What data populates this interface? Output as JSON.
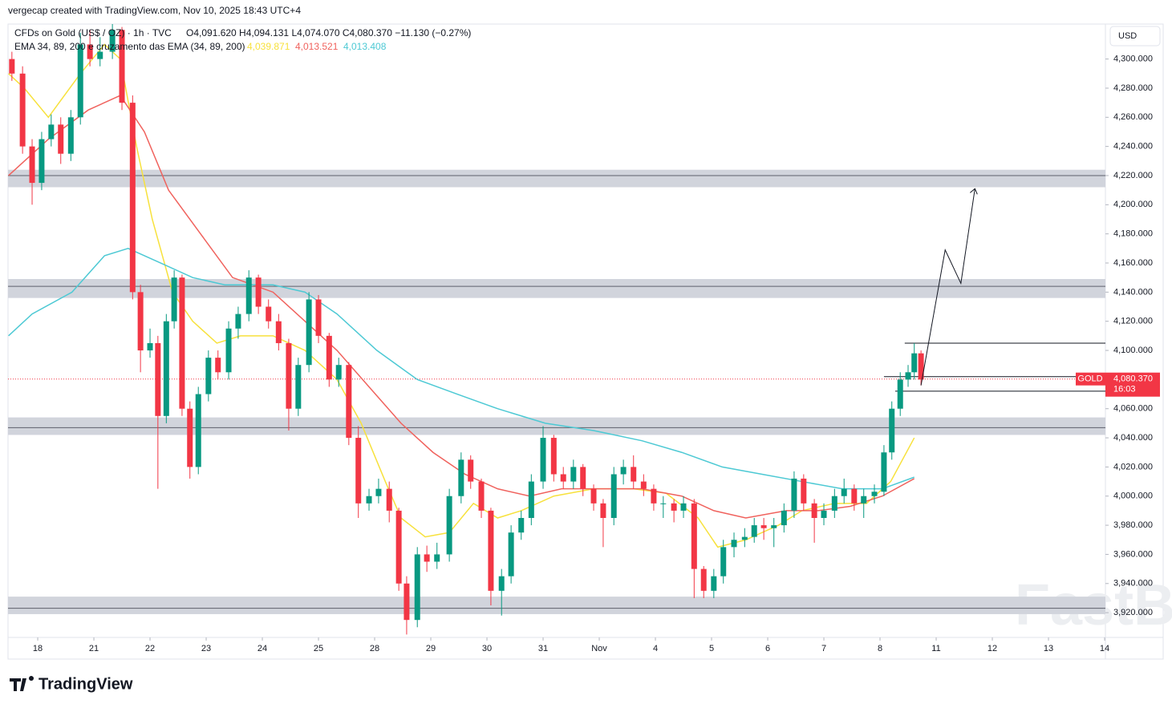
{
  "header": "vergecap created with TradingView.com, Nov 10, 2025 18:43 UTC+4",
  "brand": "TradingView",
  "watermark": "FastBull",
  "chart_data": {
    "type": "candlestick",
    "title": "CFDs on Gold (US$ / OZ) · 1h · TVC",
    "ohlc_text": "O4,091.620  H4,094.131  L4,074.070  C4,080.370  −11.130 (−0.27%)",
    "indicator": "EMA 34, 89, 200 e cruzamento das EMA (34, 89, 200)",
    "currency": "USD",
    "x": [
      -0.46,
      -0.27,
      -0.1,
      0.07,
      0.24,
      0.41,
      0.59,
      0.76,
      0.93,
      1.11,
      1.33,
      1.5,
      1.69,
      1.83,
      2.0,
      2.14,
      2.29,
      2.43,
      2.57,
      2.71,
      2.86,
      3.04,
      3.21,
      3.4,
      3.57,
      3.76,
      3.93,
      4.11,
      4.29,
      4.47,
      4.64,
      4.83,
      5.0,
      5.19,
      5.36,
      5.54,
      5.71,
      5.9,
      6.07,
      6.26,
      6.43,
      6.57,
      6.76,
      6.93,
      7.11,
      7.33,
      7.54,
      7.71,
      7.9,
      8.07,
      8.26,
      8.43,
      8.61,
      8.79,
      9.0,
      9.19,
      9.36,
      9.54,
      9.71,
      9.9,
      10.07,
      10.26,
      10.43,
      10.61,
      10.79,
      10.97,
      11.14,
      11.33,
      11.5,
      11.69,
      11.86,
      12.04,
      12.21,
      12.4,
      12.59,
      12.76,
      12.93,
      13.11,
      13.29,
      13.47,
      13.64,
      13.83,
      14.0,
      14.19,
      14.36,
      14.54,
      14.71,
      14.9,
      15.07,
      15.21,
      15.36,
      15.5,
      15.61,
      15.73
    ],
    "ohlc": [
      [
        4300,
        4305,
        4285,
        4290
      ],
      [
        4290,
        4295,
        4235,
        4240
      ],
      [
        4240,
        4245,
        4200,
        4215
      ],
      [
        4215,
        4250,
        4210,
        4245
      ],
      [
        4245,
        4262,
        4240,
        4255
      ],
      [
        4255,
        4260,
        4228,
        4235
      ],
      [
        4235,
        4265,
        4230,
        4260
      ],
      [
        4260,
        4318,
        4255,
        4310
      ],
      [
        4310,
        4320,
        4295,
        4300
      ],
      [
        4300,
        4315,
        4295,
        4305
      ],
      [
        4305,
        4324,
        4300,
        4320
      ],
      [
        4320,
        4322,
        4265,
        4270
      ],
      [
        4270,
        4275,
        4135,
        4140
      ],
      [
        4140,
        4145,
        4085,
        4100
      ],
      [
        4100,
        4115,
        4095,
        4105
      ],
      [
        4105,
        4110,
        4005,
        4055
      ],
      [
        4055,
        4125,
        4050,
        4120
      ],
      [
        4120,
        4155,
        4115,
        4150
      ],
      [
        4150,
        4152,
        4055,
        4060
      ],
      [
        4060,
        4065,
        4012,
        4020
      ],
      [
        4020,
        4075,
        4015,
        4070
      ],
      [
        4070,
        4100,
        4065,
        4095
      ],
      [
        4095,
        4100,
        4080,
        4085
      ],
      [
        4085,
        4120,
        4080,
        4115
      ],
      [
        4115,
        4130,
        4108,
        4125
      ],
      [
        4125,
        4155,
        4120,
        4150
      ],
      [
        4150,
        4152,
        4125,
        4130
      ],
      [
        4130,
        4135,
        4115,
        4120
      ],
      [
        4120,
        4125,
        4100,
        4105
      ],
      [
        4105,
        4108,
        4045,
        4060
      ],
      [
        4060,
        4095,
        4055,
        4090
      ],
      [
        4090,
        4140,
        4085,
        4135
      ],
      [
        4135,
        4138,
        4105,
        4110
      ],
      [
        4110,
        4112,
        4075,
        4080
      ],
      [
        4080,
        4095,
        4075,
        4090
      ],
      [
        4090,
        4092,
        4035,
        4040
      ],
      [
        4040,
        4048,
        3985,
        3995
      ],
      [
        3995,
        4005,
        3990,
        4000
      ],
      [
        4000,
        4012,
        3995,
        4005
      ],
      [
        4005,
        4010,
        3982,
        3990
      ],
      [
        3990,
        3992,
        3935,
        3940
      ],
      [
        3940,
        3945,
        3905,
        3915
      ],
      [
        3915,
        3965,
        3910,
        3960
      ],
      [
        3960,
        3966,
        3948,
        3955
      ],
      [
        3955,
        3968,
        3950,
        3960
      ],
      [
        3960,
        4005,
        3955,
        4000
      ],
      [
        4000,
        4030,
        3995,
        4025
      ],
      [
        4025,
        4028,
        4005,
        4010
      ],
      [
        4010,
        4012,
        3985,
        3990
      ],
      [
        3990,
        3992,
        3925,
        3935
      ],
      [
        3935,
        3950,
        3918,
        3945
      ],
      [
        3945,
        3980,
        3940,
        3975
      ],
      [
        3975,
        3990,
        3970,
        3985
      ],
      [
        3985,
        4015,
        3980,
        4010
      ],
      [
        4010,
        4048,
        4005,
        4040
      ],
      [
        4040,
        4042,
        4010,
        4015
      ],
      [
        4015,
        4020,
        4005,
        4010
      ],
      [
        4010,
        4025,
        4005,
        4020
      ],
      [
        4020,
        4022,
        4000,
        4005
      ],
      [
        4005,
        4008,
        3990,
        3995
      ],
      [
        3995,
        3998,
        3965,
        3985
      ],
      [
        3985,
        4020,
        3980,
        4015
      ],
      [
        4015,
        4025,
        4008,
        4020
      ],
      [
        4020,
        4028,
        4005,
        4010
      ],
      [
        4010,
        4015,
        4000,
        4005
      ],
      [
        4005,
        4008,
        3990,
        3995
      ],
      [
        3995,
        4000,
        3985,
        3995
      ],
      [
        3995,
        3998,
        3982,
        3990
      ],
      [
        3990,
        4000,
        3985,
        3995
      ],
      [
        3995,
        3998,
        3930,
        3950
      ],
      [
        3950,
        3952,
        3930,
        3935
      ],
      [
        3935,
        3950,
        3930,
        3945
      ],
      [
        3945,
        3970,
        3940,
        3965
      ],
      [
        3965,
        3975,
        3958,
        3970
      ],
      [
        3970,
        3978,
        3965,
        3972
      ],
      [
        3972,
        3985,
        3968,
        3980
      ],
      [
        3980,
        3985,
        3970,
        3978
      ],
      [
        3978,
        3985,
        3965,
        3980
      ],
      [
        3980,
        3995,
        3975,
        3990
      ],
      [
        3990,
        4017,
        3985,
        4012
      ],
      [
        4012,
        4015,
        3990,
        3995
      ],
      [
        3995,
        3998,
        3968,
        3985
      ],
      [
        3985,
        3995,
        3980,
        3990
      ],
      [
        3990,
        4005,
        3985,
        4000
      ],
      [
        4000,
        4012,
        3995,
        4005
      ],
      [
        4005,
        4008,
        3990,
        3995
      ],
      [
        3995,
        4005,
        3985,
        4000
      ],
      [
        4000,
        4008,
        3995,
        4003
      ],
      [
        4003,
        4035,
        4000,
        4030
      ],
      [
        4030,
        4065,
        4025,
        4060
      ],
      [
        4060,
        4085,
        4055,
        4080
      ],
      [
        4080,
        4090,
        4075,
        4085
      ],
      [
        4085,
        4105,
        4080,
        4098
      ],
      [
        4098,
        4100,
        4076,
        4080
      ]
    ],
    "up_color": "#089981",
    "down_color": "#f23645",
    "series": [
      {
        "name": "EMA 34",
        "color": "#f7e13c",
        "value_label": "4,039.871",
        "x": [
          -0.52,
          -0.24,
          0.19,
          0.76,
          1.19,
          1.47,
          1.76,
          2.04,
          2.4,
          2.76,
          3.19,
          3.61,
          4.19,
          4.76,
          5.33,
          5.76,
          6.19,
          6.47,
          6.9,
          7.33,
          7.76,
          8.19,
          8.61,
          9.19,
          9.9,
          10.61,
          11.19,
          11.76,
          12.11,
          12.61,
          13.19,
          13.61,
          14.19,
          14.76,
          15.19,
          15.61
        ],
        "values": [
          4290,
          4280,
          4260,
          4290,
          4310,
          4300,
          4240,
          4190,
          4140,
          4120,
          4105,
          4110,
          4110,
          4100,
          4080,
          4050,
          4010,
          3985,
          3972,
          3975,
          3995,
          3985,
          3990,
          4000,
          4005,
          4005,
          4002,
          3985,
          3965,
          3970,
          3980,
          3990,
          3995,
          3995,
          4010,
          4040
        ]
      },
      {
        "name": "EMA 89",
        "color": "#f0625d",
        "value_label": "4,013.521",
        "x": [
          -0.52,
          0.19,
          0.9,
          1.47,
          1.9,
          2.33,
          2.9,
          3.47,
          4.19,
          4.76,
          5.33,
          5.9,
          6.47,
          7.04,
          7.61,
          8.19,
          8.76,
          9.33,
          10.04,
          10.76,
          11.47,
          12.04,
          12.61,
          13.33,
          13.9,
          14.47,
          15.04,
          15.61
        ],
        "values": [
          4220,
          4245,
          4265,
          4275,
          4250,
          4210,
          4180,
          4150,
          4140,
          4120,
          4100,
          4075,
          4050,
          4030,
          4015,
          4005,
          4000,
          4005,
          4005,
          4005,
          4000,
          3990,
          3985,
          3990,
          3990,
          3993,
          4000,
          4012
        ]
      },
      {
        "name": "EMA 200",
        "color": "#4dc9d4",
        "value_label": "4,013.408",
        "x": [
          -0.52,
          -0.1,
          0.61,
          1.19,
          1.61,
          2.19,
          2.76,
          3.33,
          4.19,
          4.76,
          5.33,
          6.04,
          6.76,
          7.47,
          8.19,
          9.04,
          9.9,
          10.76,
          11.47,
          12.19,
          12.9,
          13.61,
          14.33,
          15.04,
          15.61
        ],
        "values": [
          4110,
          4125,
          4140,
          4165,
          4170,
          4160,
          4150,
          4145,
          4145,
          4140,
          4125,
          4100,
          4080,
          4070,
          4060,
          4050,
          4045,
          4038,
          4030,
          4020,
          4015,
          4010,
          4005,
          4005,
          4013
        ]
      }
    ],
    "zones": [
      {
        "low": 4212,
        "high": 4224,
        "line": 4220
      },
      {
        "low": 4136,
        "high": 4149,
        "line": 4144
      },
      {
        "low": 4042,
        "high": 4054,
        "line": 4047
      },
      {
        "low": 3919,
        "high": 3931,
        "line": 3923
      }
    ],
    "levels": [
      {
        "value": 4105,
        "from": 15.44
      },
      {
        "value": 4082,
        "from": 15.07
      },
      {
        "value": 4072,
        "from": 15.27
      }
    ],
    "projection": {
      "x": [
        15.73,
        16.16,
        16.44,
        16.69
      ],
      "values": [
        4076,
        4169,
        4146,
        4211
      ]
    },
    "last_price": {
      "symbol": "GOLD",
      "value": 4080.37,
      "label": "4,080.370",
      "countdown": "16:03",
      "color": "#f23645"
    },
    "xlim": [
      -0.529,
      19.014
    ],
    "ylim": [
      3903,
      4324
    ],
    "xticks": [
      {
        "value": 0,
        "label": "18"
      },
      {
        "value": 1,
        "label": "21"
      },
      {
        "value": 2,
        "label": "22"
      },
      {
        "value": 3,
        "label": "23"
      },
      {
        "value": 4,
        "label": "24"
      },
      {
        "value": 5,
        "label": "25"
      },
      {
        "value": 6,
        "label": "28"
      },
      {
        "value": 7,
        "label": "29"
      },
      {
        "value": 8,
        "label": "30"
      },
      {
        "value": 9,
        "label": "31"
      },
      {
        "value": 10,
        "label": "Nov"
      },
      {
        "value": 11,
        "label": "4"
      },
      {
        "value": 12,
        "label": "5"
      },
      {
        "value": 13,
        "label": "6"
      },
      {
        "value": 14,
        "label": "7"
      },
      {
        "value": 15,
        "label": "8"
      },
      {
        "value": 16,
        "label": "11"
      },
      {
        "value": 17,
        "label": "12"
      },
      {
        "value": 18,
        "label": "13"
      },
      {
        "value": 19,
        "label": "14"
      }
    ],
    "yticks": [
      {
        "value": 4300,
        "label": "4,300.000"
      },
      {
        "value": 4280,
        "label": "4,280.000"
      },
      {
        "value": 4260,
        "label": "4,260.000"
      },
      {
        "value": 4240,
        "label": "4,240.000"
      },
      {
        "value": 4220,
        "label": "4,220.000"
      },
      {
        "value": 4200,
        "label": "4,200.000"
      },
      {
        "value": 4180,
        "label": "4,180.000"
      },
      {
        "value": 4160,
        "label": "4,160.000"
      },
      {
        "value": 4140,
        "label": "4,140.000"
      },
      {
        "value": 4120,
        "label": "4,120.000"
      },
      {
        "value": 4100,
        "label": "4,100.000"
      },
      {
        "value": 4080,
        "label": "4,080.000"
      },
      {
        "value": 4060,
        "label": "4,060.000"
      },
      {
        "value": 4040,
        "label": "4,040.000"
      },
      {
        "value": 4020,
        "label": "4,020.000"
      },
      {
        "value": 4000,
        "label": "4,000.000"
      },
      {
        "value": 3980,
        "label": "3,980.000"
      },
      {
        "value": 3960,
        "label": "3,960.000"
      },
      {
        "value": 3940,
        "label": "3,940.000"
      },
      {
        "value": 3920,
        "label": "3,920.000"
      }
    ],
    "grid": false
  }
}
